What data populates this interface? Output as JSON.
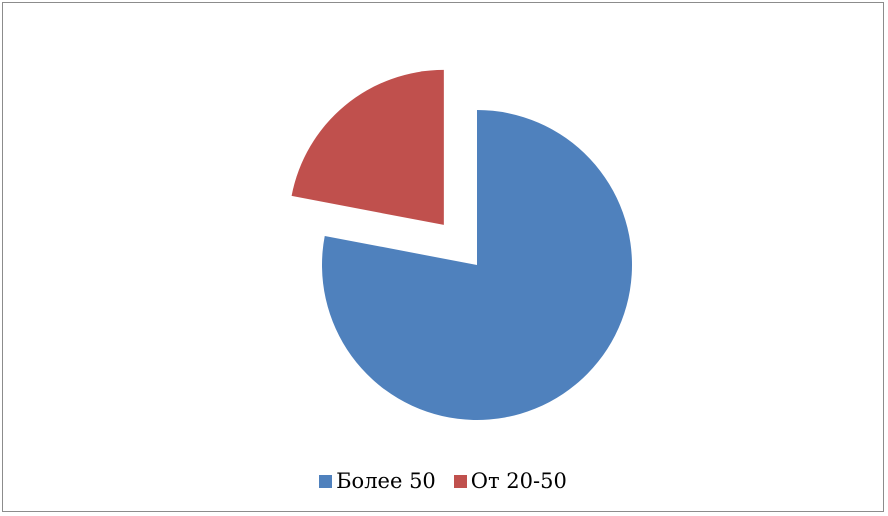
{
  "chart_data": {
    "type": "pie",
    "title": "",
    "series": [
      {
        "name": "Более 50",
        "value": 78,
        "color": "#4F81BD",
        "exploded": false
      },
      {
        "name": "От 20-50",
        "value": 22,
        "color": "#C0504D",
        "exploded": true
      }
    ],
    "legend": {
      "position": "bottom",
      "items": [
        {
          "label": "Более 50",
          "color": "#4F81BD"
        },
        {
          "label": "От 20-50",
          "color": "#C0504D"
        }
      ]
    }
  }
}
